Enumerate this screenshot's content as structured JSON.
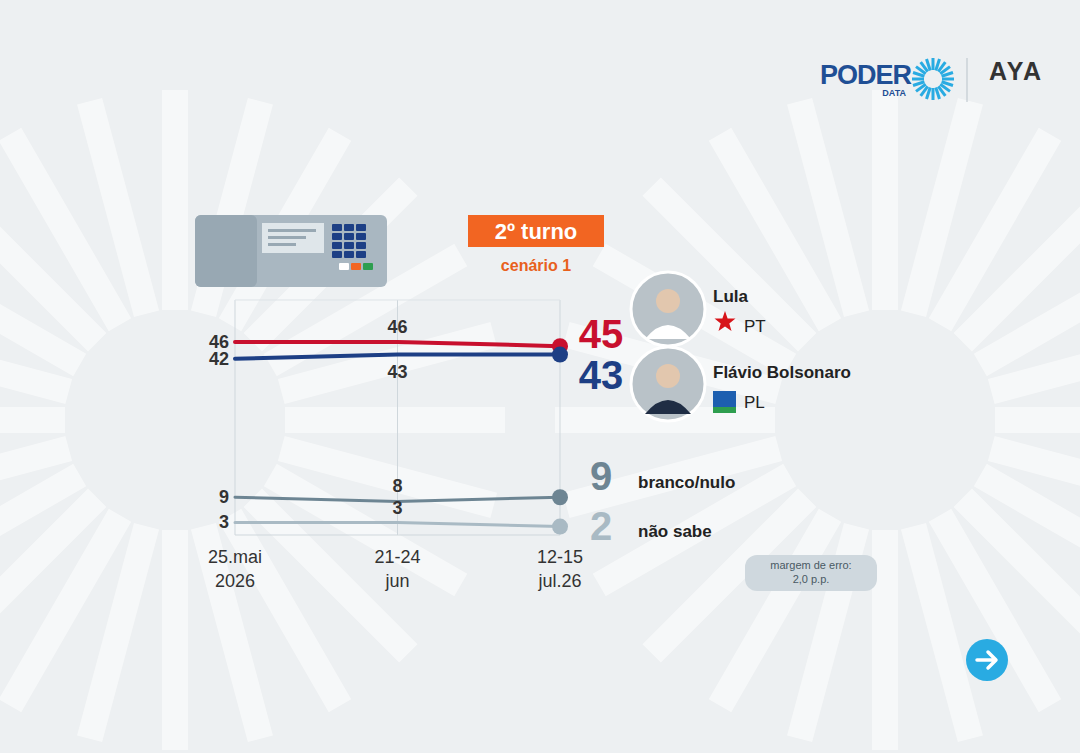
{
  "chart_data": {
    "type": "line",
    "title": "2º turno",
    "subtitle": "cenário 1",
    "categories": [
      "25.mai\n2026",
      "21-24\njun",
      "12-15\njul.26"
    ],
    "series": [
      {
        "name": "Lula",
        "party": "PT",
        "color": "#c8102e",
        "values": [
          46,
          46,
          45
        ]
      },
      {
        "name": "Flávio Bolsonaro",
        "party": "PL",
        "color": "#1d3f85",
        "values": [
          42,
          43,
          43
        ]
      },
      {
        "name": "branco/nulo",
        "color": "#6d8593",
        "values": [
          9,
          8,
          9
        ]
      },
      {
        "name": "não sabe",
        "color": "#a9bac4",
        "values": [
          3,
          3,
          2
        ]
      }
    ],
    "ylim": [
      0,
      56
    ],
    "tick_labels": "x",
    "grid": true,
    "data_labels": true,
    "annotations": [
      "margem de erro: 2,0 p.p."
    ],
    "brand": {
      "logo": "PODER",
      "logo_sub": "DATA",
      "partner": "AYA"
    }
  }
}
